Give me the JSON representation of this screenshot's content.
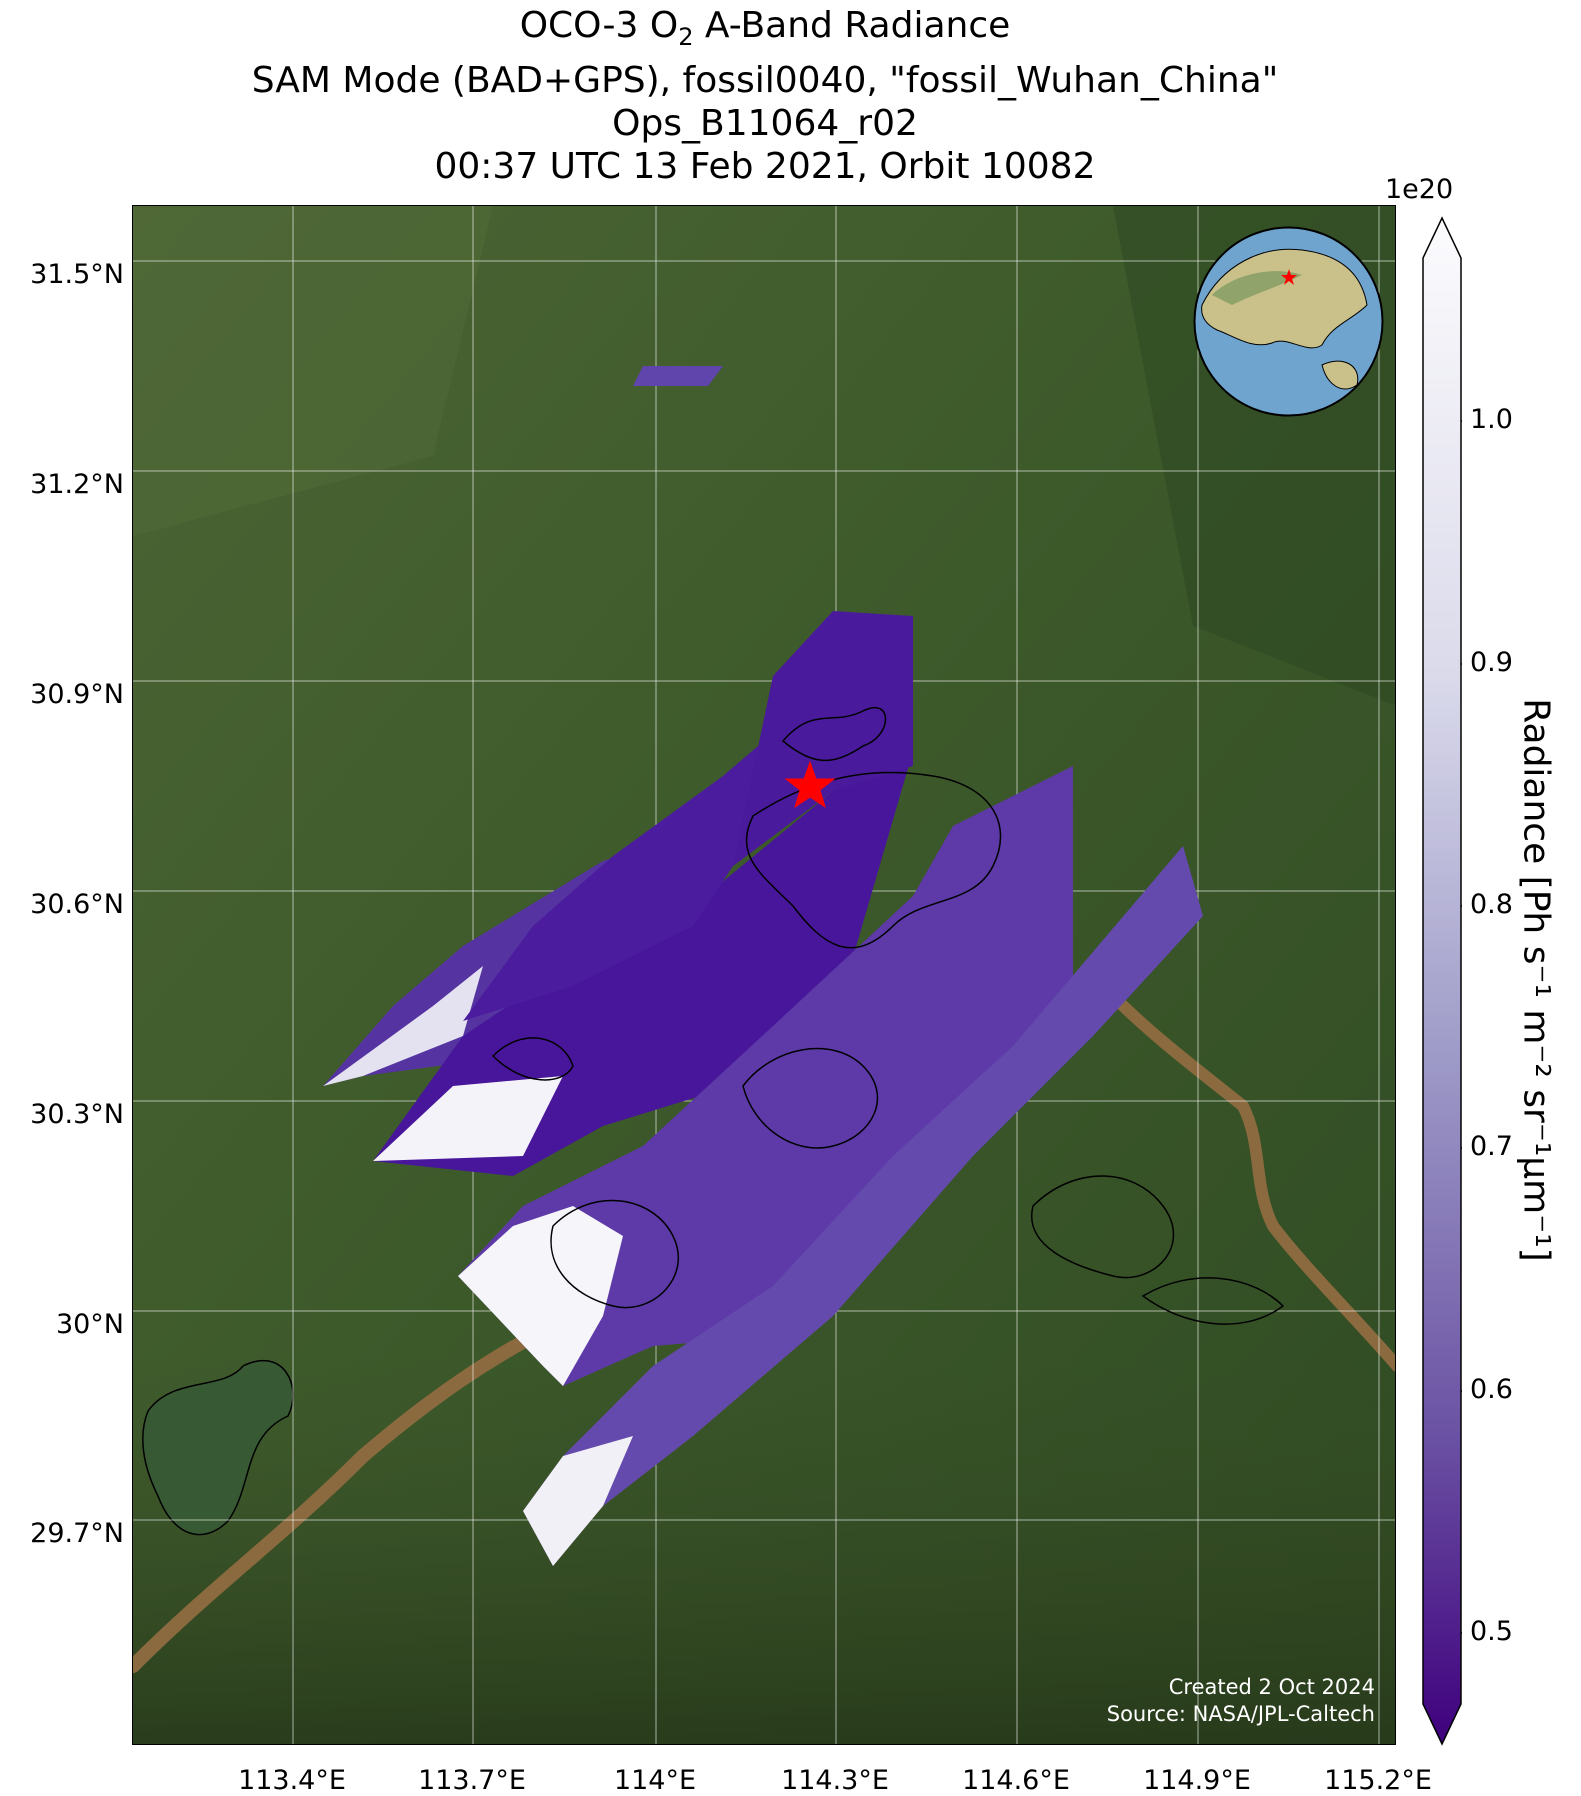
{
  "title": {
    "line1_pre": "OCO-3 O",
    "line1_sub": "2",
    "line1_post": " A-Band Radiance",
    "line2": "SAM Mode (BAD+GPS), fossil0040, \"fossil_Wuhan_China\"",
    "line3": "Ops_B11064_r02",
    "line4": "00:37 UTC 13 Feb 2021, Orbit 10082"
  },
  "map": {
    "lat_range": [
      29.4,
      31.6
    ],
    "lon_range": [
      113.15,
      115.22
    ],
    "lat_ticks": [
      "31.5°N",
      "31.2°N",
      "30.9°N",
      "30.6°N",
      "30.3°N",
      "30°N",
      "29.7°N"
    ],
    "lon_ticks": [
      "113.4°E",
      "113.7°E",
      "114°E",
      "114.3°E",
      "114.6°E",
      "114.9°E",
      "115.2°E"
    ],
    "target": {
      "name": "fossil_Wuhan_China",
      "lat": 30.64,
      "lon": 114.32,
      "marker": "red-star"
    },
    "credits": {
      "line1": "Created 2 Oct 2024",
      "line2": "Source: NASA/JPL-Caltech"
    },
    "inset": "globe-locator-map"
  },
  "colorbar": {
    "exponent": "1e20",
    "ticks": [
      "1.0",
      "0.9",
      "0.8",
      "0.7",
      "0.6",
      "0.5"
    ],
    "range": [
      0.48,
      1.06
    ],
    "colormap": "Purples_r",
    "label": "Radiance [Ph s⁻¹ m⁻² sr⁻¹μm⁻¹]"
  },
  "colors": {
    "low": "#3f007d",
    "mid": "#7d6eb8",
    "high": "#fcfbfd",
    "marker": "#ff0000",
    "land": "#3c5a2a",
    "river": "#8a6a3e"
  }
}
